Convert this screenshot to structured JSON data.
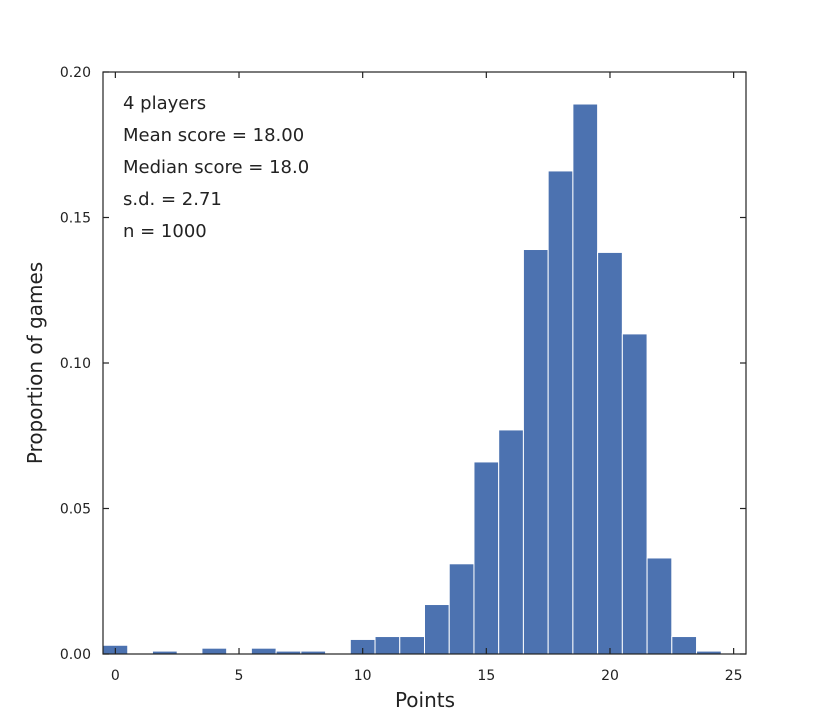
{
  "chart_data": {
    "type": "bar",
    "title": "",
    "xlabel": "Points",
    "ylabel": "Proportion of games",
    "xlim": [
      -0.5,
      25.5
    ],
    "ylim": [
      0,
      0.2
    ],
    "bin_width": 1,
    "bins": [
      {
        "x": 0,
        "value": 0.003
      },
      {
        "x": 1,
        "value": 0
      },
      {
        "x": 2,
        "value": 0.001
      },
      {
        "x": 3,
        "value": 0
      },
      {
        "x": 4,
        "value": 0.002
      },
      {
        "x": 5,
        "value": 0
      },
      {
        "x": 6,
        "value": 0.002
      },
      {
        "x": 7,
        "value": 0.001
      },
      {
        "x": 8,
        "value": 0.001
      },
      {
        "x": 9,
        "value": 0
      },
      {
        "x": 10,
        "value": 0.005
      },
      {
        "x": 11,
        "value": 0.006
      },
      {
        "x": 12,
        "value": 0.006
      },
      {
        "x": 13,
        "value": 0.017
      },
      {
        "x": 14,
        "value": 0.031
      },
      {
        "x": 15,
        "value": 0.066
      },
      {
        "x": 16,
        "value": 0.077
      },
      {
        "x": 17,
        "value": 0.139
      },
      {
        "x": 18,
        "value": 0.166
      },
      {
        "x": 19,
        "value": 0.189
      },
      {
        "x": 20,
        "value": 0.138
      },
      {
        "x": 21,
        "value": 0.11
      },
      {
        "x": 22,
        "value": 0.033
      },
      {
        "x": 23,
        "value": 0.006
      },
      {
        "x": 24,
        "value": 0.001
      }
    ],
    "x_ticks": [
      {
        "value": 0,
        "label": "0"
      },
      {
        "value": 5,
        "label": "5"
      },
      {
        "value": 10,
        "label": "10"
      },
      {
        "value": 15,
        "label": "15"
      },
      {
        "value": 20,
        "label": "20"
      },
      {
        "value": 25,
        "label": "25"
      }
    ],
    "y_ticks": [
      {
        "value": 0,
        "label": "0.00"
      },
      {
        "value": 0.05,
        "label": "0.05"
      },
      {
        "value": 0.1,
        "label": "0.10"
      },
      {
        "value": 0.15,
        "label": "0.15"
      },
      {
        "value": 0.2,
        "label": "0.20"
      }
    ],
    "annotations": [
      "4 players",
      "Mean score = 18.00",
      "Median score = 18.0",
      "s.d. = 2.71",
      "n = 1000"
    ],
    "grid": false,
    "colors": {
      "bar": "#4c72b0",
      "bar_edge": "#ffffff",
      "axis": "#222222"
    }
  }
}
